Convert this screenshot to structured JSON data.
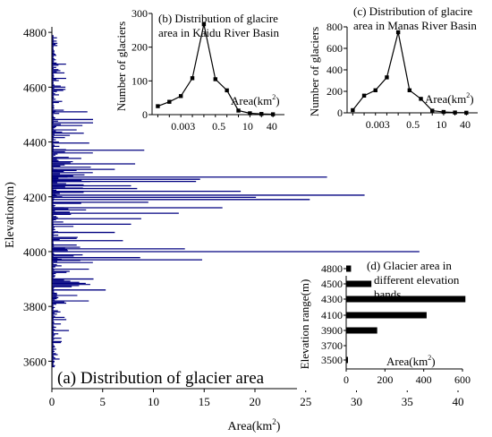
{
  "chart_data": [
    {
      "id": "a",
      "type": "bar",
      "orientation": "horizontal",
      "title": "(a) Distribution of glacier area",
      "xlabel": "Area(km²)",
      "ylabel": "Elevation(m)",
      "xlim": [
        0,
        40
      ],
      "ylim": [
        3500,
        4820
      ],
      "xticks": [
        0,
        5,
        10,
        15,
        20,
        25,
        30,
        35,
        40
      ],
      "yticks": [
        3600,
        3800,
        4000,
        4200,
        4400,
        4600,
        4800
      ],
      "bar_color": "#000080",
      "notable_bars": [
        {
          "elevation": 4000,
          "area": 36.2
        },
        {
          "elevation": 4206,
          "area": 30.8
        },
        {
          "elevation": 4220,
          "area": 18.6
        },
        {
          "elevation": 4198,
          "area": 20.1
        },
        {
          "elevation": 4190,
          "area": 25.4
        },
        {
          "elevation": 4272,
          "area": 27.1
        },
        {
          "elevation": 4264,
          "area": 14.6
        },
        {
          "elevation": 4256,
          "area": 14.2
        },
        {
          "elevation": 4010,
          "area": 13.1
        },
        {
          "elevation": 3970,
          "area": 14.8
        },
        {
          "elevation": 3978,
          "area": 8.7
        },
        {
          "elevation": 4160,
          "area": 16.8
        },
        {
          "elevation": 4140,
          "area": 12.5
        },
        {
          "elevation": 4240,
          "area": 7.8
        },
        {
          "elevation": 4320,
          "area": 8.2
        },
        {
          "elevation": 4370,
          "area": 9.1
        },
        {
          "elevation": 4470,
          "area": 10.8
        },
        {
          "elevation": 4482,
          "area": 5.3
        },
        {
          "elevation": 4510,
          "area": 3.5
        },
        {
          "elevation": 3860,
          "area": 5.3
        },
        {
          "elevation": 3900,
          "area": 4.1
        },
        {
          "elevation": 4100,
          "area": 7.8
        },
        {
          "elevation": 4120,
          "area": 8.8
        },
        {
          "elevation": 4070,
          "area": 6.2
        },
        {
          "elevation": 4040,
          "area": 7.0
        },
        {
          "elevation": 4300,
          "area": 6.2
        },
        {
          "elevation": 4180,
          "area": 9.5
        },
        {
          "elevation": 4230,
          "area": 8.4
        }
      ],
      "background_note": "many short bars every ~4 m from 3580 to 4790 m"
    },
    {
      "id": "b",
      "type": "line",
      "title": "(b) Distribution of glacire area in Kaidu River Basin",
      "xlabel": "Area(km²)",
      "ylabel": "Number of glaciers",
      "ylim": [
        0,
        300
      ],
      "yticks": [
        0,
        100,
        200,
        300
      ],
      "xtick_labels": [
        "0.003",
        "0.5",
        "10",
        "40"
      ],
      "x": [
        1,
        2,
        3,
        4,
        5,
        6,
        7,
        8,
        9,
        10,
        11
      ],
      "values": [
        25,
        38,
        55,
        108,
        268,
        105,
        72,
        12,
        4,
        2,
        1
      ]
    },
    {
      "id": "c",
      "type": "line",
      "title": "(c) Distribution of glacire area in Manas River Basin",
      "xlabel": "Area(km²)",
      "ylabel": "Number of glaciers",
      "ylim": [
        0,
        800
      ],
      "yticks": [
        0,
        200,
        400,
        600,
        800
      ],
      "xtick_labels": [
        "0.003",
        "0.5",
        "10",
        "40"
      ],
      "x": [
        1,
        2,
        3,
        4,
        5,
        6,
        7,
        8,
        9,
        10,
        11
      ],
      "values": [
        25,
        160,
        210,
        330,
        750,
        210,
        130,
        20,
        8,
        3,
        1
      ]
    },
    {
      "id": "d",
      "type": "bar",
      "orientation": "horizontal",
      "title": "(d) Glacier area in different elevation bands",
      "xlabel": "Area(km²)",
      "ylabel": "Elevation range(m)",
      "xlim": [
        0,
        600
      ],
      "xticks": [
        0,
        200,
        400,
        600
      ],
      "categories": [
        "3500",
        "3700",
        "3900",
        "4100",
        "4300",
        "4500",
        "4800"
      ],
      "values": [
        3,
        0,
        160,
        415,
        615,
        130,
        25
      ]
    }
  ]
}
